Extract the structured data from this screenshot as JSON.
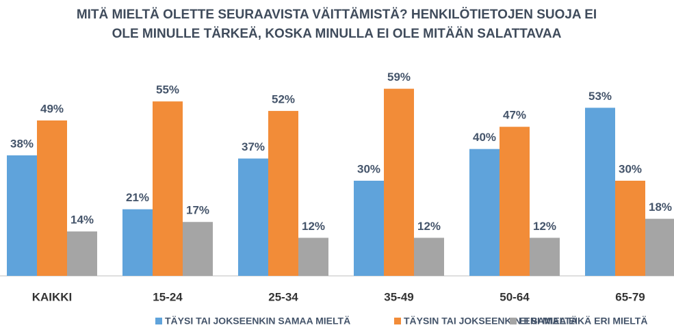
{
  "chart_data": {
    "type": "bar",
    "title": [
      "MITÄ MIELTÄ OLETTE SEURAAVISTA VÄITTÄMISTÄ? HENKILÖTIETOJEN SUOJA EI",
      "OLE MINULLE TÄRKEÄ, KOSKA MINULLA EI OLE MITÄÄN SALATTAVAA"
    ],
    "categories": [
      "KAIKKI",
      "15-24",
      "25-34",
      "35-49",
      "50-64",
      "65-79"
    ],
    "series": [
      {
        "name": "TÄYSI TAI JOKSEENKIN SAMAA MIELTÄ",
        "color": "#5fa3db",
        "values": [
          38,
          21,
          37,
          30,
          40,
          53
        ],
        "value_labels": [
          "38%",
          "21%",
          "37%",
          "30%",
          "40%",
          "53%"
        ]
      },
      {
        "name": "TÄYSIN TAI JOKSEENKIN ERI MIELTÄ",
        "color": "#f28c38",
        "values": [
          49,
          55,
          52,
          59,
          47,
          30
        ],
        "value_labels": [
          "49%",
          "55%",
          "52%",
          "59%",
          "47%",
          "30%"
        ]
      },
      {
        "name": "EI SAMAA EIKÄ ERI MIELTÄ",
        "color": "#a5a5a5",
        "values": [
          14,
          17,
          12,
          12,
          12,
          18
        ],
        "value_labels": [
          "14%",
          "17%",
          "12%",
          "12%",
          "12%",
          "18%"
        ]
      }
    ],
    "ylim": [
      0,
      60
    ],
    "legend": "bottom"
  }
}
